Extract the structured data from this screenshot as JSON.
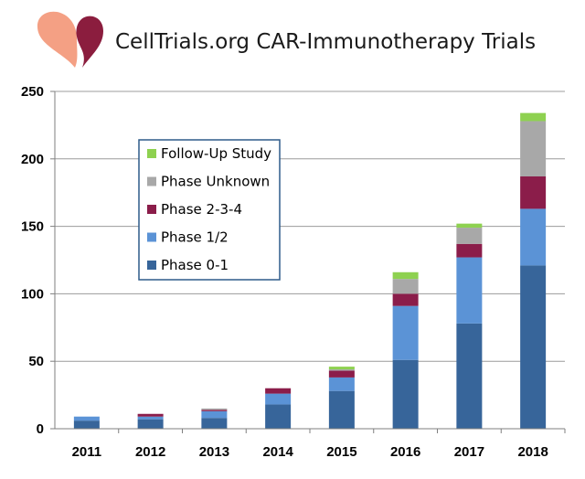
{
  "chart_data": {
    "type": "bar",
    "stacked": true,
    "title": "CellTrials.org CAR-Immunotherapy Trials",
    "categories": [
      "2011",
      "2012",
      "2013",
      "2014",
      "2015",
      "2016",
      "2017",
      "2018"
    ],
    "ylim": [
      0,
      250
    ],
    "yticks": [
      0,
      50,
      100,
      150,
      200,
      250
    ],
    "grid": true,
    "legend_position": "upper-left",
    "series": [
      {
        "name": "Phase 0-1",
        "color": "#37659a",
        "values": [
          6,
          7,
          8,
          18,
          28,
          51,
          78,
          121
        ]
      },
      {
        "name": "Phase 1/2",
        "color": "#5b93d6",
        "values": [
          3,
          2,
          5,
          8,
          10,
          40,
          49,
          42
        ]
      },
      {
        "name": "Phase 2-3-4",
        "color": "#8b1d4a",
        "values": [
          0,
          2,
          1,
          4,
          5,
          9,
          10,
          24
        ]
      },
      {
        "name": "Phase Unknown",
        "color": "#a8a8a8",
        "values": [
          0,
          0,
          1,
          0,
          1,
          11,
          12,
          41
        ]
      },
      {
        "name": "Follow-Up Study",
        "color": "#8ed150",
        "values": [
          0,
          0,
          0,
          0,
          2,
          5,
          3,
          6
        ]
      }
    ],
    "legend_order": [
      "Follow-Up Study",
      "Phase Unknown",
      "Phase 2-3-4",
      "Phase 1/2",
      "Phase 0-1"
    ]
  },
  "logo": {
    "name": "celltrials-logo"
  }
}
